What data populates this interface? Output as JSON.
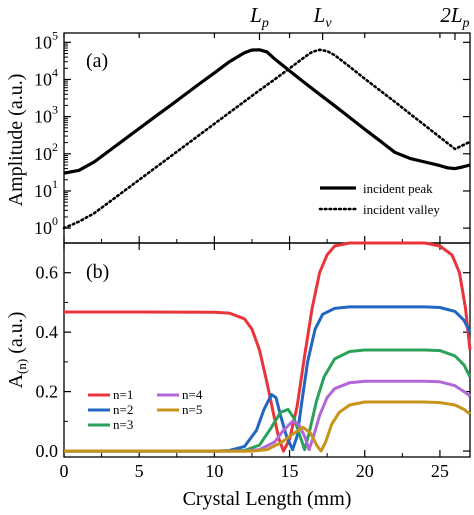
{
  "chart_data": [
    {
      "panel_label": "(a)",
      "type": "line",
      "title": "",
      "ylabel": "Amplitude (a.u.)",
      "xlabel": "",
      "yscale": "log",
      "xlim": [
        0,
        27
      ],
      "ylim_exponent": [
        -0.4,
        5.25
      ],
      "y_tick_labels": [
        {
          "base": "10",
          "exp": "0"
        },
        {
          "base": "10",
          "exp": "1"
        },
        {
          "base": "10",
          "exp": "2"
        },
        {
          "base": "10",
          "exp": "3"
        },
        {
          "base": "10",
          "exp": "4"
        },
        {
          "base": "10",
          "exp": "5"
        }
      ],
      "top_axis_labels": [
        {
          "base": "L",
          "sub": "p",
          "x": 13.0
        },
        {
          "base": "L",
          "sub": "v",
          "x": 17.2
        },
        {
          "base": "2L",
          "sub": "p",
          "x": 26.0
        }
      ],
      "legend": {
        "position": "lower-right",
        "entries": [
          "incident peak",
          "incident valley"
        ]
      },
      "series": [
        {
          "name": "incident peak",
          "style": "solid",
          "color": "#000000",
          "x": [
            0,
            1,
            2,
            3,
            4,
            5,
            6,
            7,
            8,
            9,
            10,
            11,
            12,
            12.5,
            13,
            13.5,
            14,
            15,
            16,
            17,
            18,
            19,
            20,
            21,
            22,
            23,
            24,
            25,
            25.5,
            26,
            26.5,
            27
          ],
          "y": [
            30,
            36,
            60,
            120,
            240,
            480,
            960,
            1900,
            3800,
            7600,
            15000,
            30000,
            52000,
            62000,
            63000,
            55000,
            36000,
            17000,
            8200,
            4000,
            1950,
            950,
            460,
            225,
            110,
            75,
            60,
            48,
            42,
            40,
            44,
            50
          ]
        },
        {
          "name": "incident valley",
          "style": "dotted",
          "color": "#000000",
          "x": [
            0,
            1,
            2,
            3,
            4,
            5,
            6,
            7,
            8,
            9,
            10,
            11,
            12,
            13,
            14,
            15,
            16,
            16.5,
            17,
            17.5,
            18,
            19,
            20,
            21,
            22,
            23,
            24,
            25,
            26,
            27
          ],
          "y": [
            1,
            1.5,
            2.5,
            5,
            10,
            20,
            40,
            80,
            160,
            320,
            640,
            1280,
            2560,
            5120,
            10000,
            20000,
            40000,
            55000,
            63000,
            58000,
            45000,
            22000,
            10500,
            5100,
            2500,
            1200,
            580,
            280,
            135,
            210
          ]
        }
      ]
    },
    {
      "panel_label": "(b)",
      "type": "line",
      "title": "",
      "xlabel": "Crystal Length (mm)",
      "ylabel": "A(n) (a.u.)",
      "ylabel_parts": {
        "main": "A",
        "sub": "(n)",
        "rest": " (a.u.)"
      },
      "xlim": [
        0,
        27
      ],
      "ylim": [
        -0.02,
        0.7
      ],
      "x_ticks": [
        0,
        5,
        10,
        15,
        20,
        25
      ],
      "y_ticks": [
        0.0,
        0.2,
        0.4,
        0.6
      ],
      "x_tick_labels": [
        "0",
        "5",
        "10",
        "15",
        "20",
        "25"
      ],
      "y_tick_labels": [
        "0.0",
        "0.2",
        "0.4",
        "0.6"
      ],
      "legend": {
        "position": "lower-left",
        "entries": [
          "n=1",
          "n=2",
          "n=3",
          "n=4",
          "n=5"
        ]
      },
      "series": [
        {
          "name": "n=1",
          "color": "#e8353b",
          "x": [
            0,
            5,
            10,
            11,
            12,
            12.5,
            13,
            13.5,
            14,
            14.3,
            14.6,
            15,
            15.5,
            16,
            16.5,
            17,
            17.5,
            18,
            19,
            20,
            22,
            24,
            25,
            25.8,
            26.3,
            26.7,
            27
          ],
          "y": [
            0.468,
            0.468,
            0.467,
            0.464,
            0.445,
            0.41,
            0.34,
            0.23,
            0.11,
            0.04,
            0.0,
            0.04,
            0.15,
            0.32,
            0.48,
            0.6,
            0.66,
            0.69,
            0.7,
            0.7,
            0.7,
            0.7,
            0.69,
            0.66,
            0.6,
            0.48,
            0.34
          ]
        },
        {
          "name": "n=2",
          "color": "#2166c2",
          "x": [
            0,
            10,
            11,
            12,
            12.8,
            13.3,
            13.8,
            14.1,
            14.4,
            14.8,
            15.2,
            15.5,
            15.8,
            16.2,
            16.7,
            17.2,
            18,
            19,
            20,
            22,
            24,
            25,
            26,
            26.6,
            27
          ],
          "y": [
            0.0,
            0.0,
            0.002,
            0.015,
            0.07,
            0.14,
            0.19,
            0.18,
            0.12,
            0.05,
            0.005,
            0.05,
            0.16,
            0.3,
            0.41,
            0.46,
            0.48,
            0.485,
            0.485,
            0.485,
            0.485,
            0.483,
            0.47,
            0.44,
            0.4
          ]
        },
        {
          "name": "n=3",
          "color": "#2ca15a",
          "x": [
            0,
            11,
            12,
            13,
            13.8,
            14.4,
            14.9,
            15.3,
            15.7,
            16.0,
            16.3,
            16.8,
            17.3,
            18,
            19,
            20,
            22,
            24,
            25,
            26,
            26.6,
            27
          ],
          "y": [
            0.0,
            0.0,
            0.002,
            0.02,
            0.08,
            0.13,
            0.14,
            0.11,
            0.05,
            0.005,
            0.06,
            0.17,
            0.25,
            0.31,
            0.335,
            0.34,
            0.34,
            0.34,
            0.338,
            0.32,
            0.29,
            0.25
          ]
        },
        {
          "name": "n=4",
          "color": "#b168d6",
          "x": [
            0,
            12,
            13,
            14,
            14.6,
            15.2,
            15.6,
            16.0,
            16.3,
            16.6,
            17.0,
            17.5,
            18,
            19,
            20,
            22,
            24,
            25,
            26,
            26.6,
            27
          ],
          "y": [
            0.0,
            0.0,
            0.005,
            0.03,
            0.07,
            0.1,
            0.09,
            0.05,
            0.005,
            0.05,
            0.12,
            0.18,
            0.21,
            0.23,
            0.235,
            0.235,
            0.235,
            0.233,
            0.22,
            0.2,
            0.185
          ]
        },
        {
          "name": "n=5",
          "color": "#c79418",
          "x": [
            0,
            12.5,
            13.5,
            14.5,
            15.3,
            15.9,
            16.4,
            16.8,
            17.1,
            17.4,
            17.8,
            18.3,
            19,
            20,
            22,
            24,
            25,
            26,
            26.6,
            27
          ],
          "y": [
            0.0,
            0.0,
            0.005,
            0.03,
            0.06,
            0.08,
            0.06,
            0.02,
            0.0,
            0.03,
            0.09,
            0.13,
            0.155,
            0.165,
            0.165,
            0.165,
            0.163,
            0.155,
            0.14,
            0.125
          ]
        }
      ]
    }
  ]
}
